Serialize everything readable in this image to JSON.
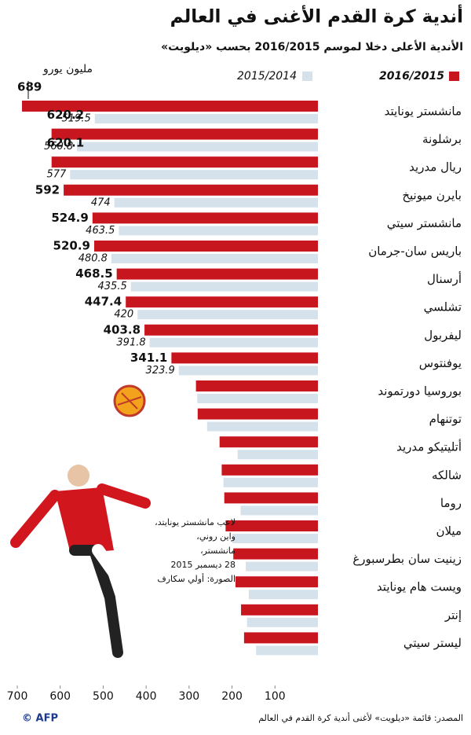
{
  "chart_data": {
    "type": "hbar",
    "title": "أندية كرة القدم الأغنى في العالم",
    "subtitle": "الأندية الأعلى دخلا لموسم 2016/2015 بحسب «ديلويت»",
    "unit_label": "مليون يورو",
    "categories": [
      "مانشستر يونايتد",
      "برشلونة",
      "ريال مدريد",
      "بايرن ميونيخ",
      "مانشستر سيتي",
      "باريس سان-جرمان",
      "أرسنال",
      "تشلسي",
      "ليفربول",
      "يوفنتوس",
      "بوروسيا دورتموند",
      "توتنهام",
      "أتليتيكو مدريد",
      "شالكه",
      "روما",
      "ميلان",
      "زينيت سان بطرسبورغ",
      "ويست هام يونايتد",
      "إنتر",
      "ليستر سيتي"
    ],
    "series": [
      {
        "name": "2016/2015",
        "color": "#c8161e",
        "values": [
          689,
          620.2,
          620.1,
          592,
          524.9,
          520.9,
          468.5,
          447.4,
          403.8,
          341.1,
          284,
          280,
          229,
          224,
          218,
          215,
          197,
          192,
          179,
          172
        ],
        "value_labels": [
          "689",
          "620.2",
          "620.1",
          "592",
          "524.9",
          "520.9",
          "468.5",
          "447.4",
          "403.8",
          "341.1",
          null,
          null,
          null,
          null,
          null,
          null,
          null,
          null,
          null,
          null
        ]
      },
      {
        "name": "2015/2014",
        "color": "#d5e1eb",
        "values": [
          519.5,
          560.8,
          577,
          474,
          463.5,
          480.8,
          435.5,
          420,
          391.8,
          323.9,
          281,
          258,
          187,
          220,
          180,
          199,
          168,
          161,
          165,
          144
        ],
        "value_labels": [
          "519.5",
          "560.8",
          "577",
          "474",
          "463.5",
          "480.8",
          "435.5",
          "420",
          "391.8",
          "323.9",
          null,
          null,
          null,
          null,
          null,
          null,
          null,
          null,
          null,
          null
        ]
      }
    ],
    "xlim": [
      0,
      700
    ],
    "xticks": [
      700,
      600,
      500,
      400,
      300,
      200,
      100
    ],
    "photo_caption": [
      "لاعب مانشستر يونايتد،",
      "واين روني،",
      "مانشستر،",
      "28 ديسمبر 2015",
      "الصورة: أولي سكارف"
    ],
    "source": "المصدر: قائمة «ديلويت» لأغنى أندية كرة القدم في العالم",
    "credit": "© AFP"
  }
}
